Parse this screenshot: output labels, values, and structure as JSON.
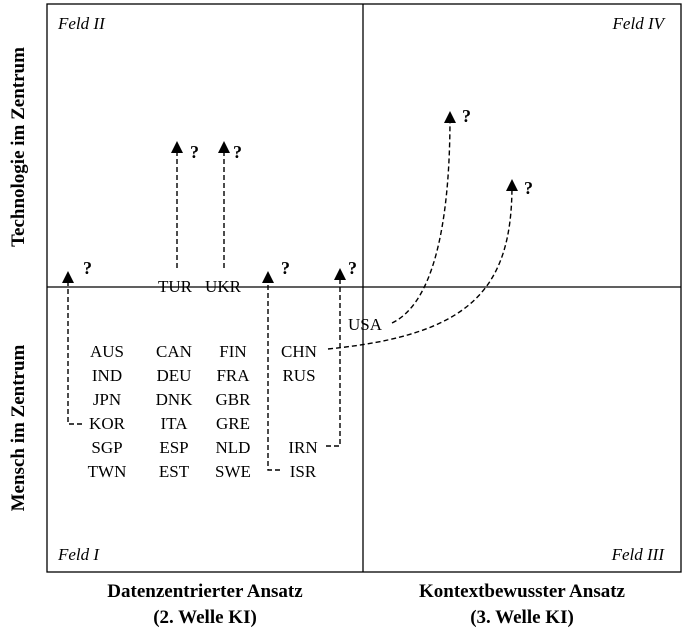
{
  "fields": {
    "top_left": "Feld II",
    "top_right": "Feld IV",
    "bottom_left": "Feld I",
    "bottom_right": "Feld III"
  },
  "axes": {
    "y_top": "Technologie im Zentrum",
    "y_bottom": "Mensch im Zentrum",
    "x_left_line1": "Datenzentrierter Ansatz",
    "x_left_line2": "(2. Welle KI)",
    "x_right_line1": "Kontextbewusster Ansatz",
    "x_right_line2": "(3. Welle KI)"
  },
  "countries": {
    "col1": [
      "AUS",
      "IND",
      "JPN",
      "KOR",
      "SGP",
      "TWN"
    ],
    "col2": [
      "CAN",
      "DEU",
      "DNK",
      "ITA",
      "ESP",
      "EST"
    ],
    "col3": [
      "FIN",
      "FRA",
      "GBR",
      "GRE",
      "NLD",
      "SWE"
    ],
    "col4_top": [
      "CHN",
      "RUS"
    ],
    "col4_bottom": [
      "IRN",
      "ISR"
    ],
    "on_line": [
      "TUR",
      "UKR"
    ],
    "usa": "USA"
  },
  "question_mark": "?",
  "colors": {
    "line": "#000000",
    "background": "#ffffff"
  }
}
